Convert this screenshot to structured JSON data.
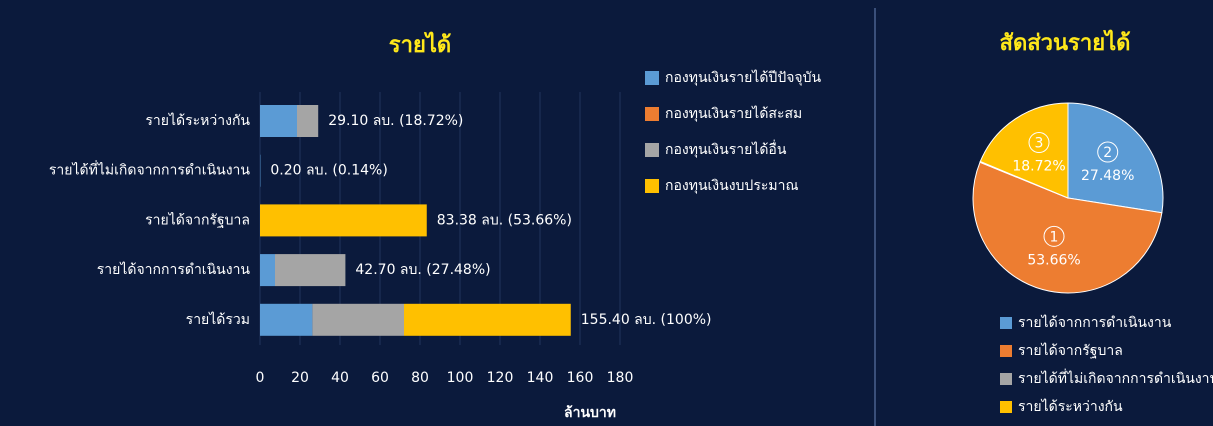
{
  "chart_data": [
    {
      "type": "hbar_stacked",
      "title": "รายได้",
      "categories": [
        "รายได้ระหว่างกัน",
        "รายได้ที่ไม่เกิดจากการดำเนินงาน",
        "รายได้จากรัฐบาล",
        "รายได้จากการดำเนินงาน",
        "รายได้รวม"
      ],
      "series": [
        {
          "name": "กองทุนเงินรายได้ปีปัจจุบัน",
          "color": "#5b9bd5",
          "values": [
            18.5,
            0.2,
            0,
            7.5,
            26.2
          ]
        },
        {
          "name": "กองทุนเงินรายได้สะสม",
          "color": "#ed7d31",
          "values": [
            0,
            0,
            0,
            0,
            0
          ]
        },
        {
          "name": "กองทุนเงินรายได้อื่น",
          "color": "#a5a5a5",
          "values": [
            10.6,
            0,
            0,
            35.2,
            45.8
          ]
        },
        {
          "name": "กองทุนเงินงบประมาณ",
          "color": "#ffc000",
          "values": [
            0,
            0,
            83.38,
            0,
            83.38
          ]
        }
      ],
      "annotations": [
        "29.10 ลบ. (18.72%)",
        "0.20 ลบ. (0.14%)",
        "83.38 ลบ. (53.66%)",
        "42.70 ลบ. (27.48%)",
        "155.40 ลบ. (100%)"
      ],
      "xlabel": "ล้านบาท",
      "xlim": [
        0,
        180
      ],
      "xticks": [
        0,
        20,
        40,
        60,
        80,
        100,
        120,
        140,
        160,
        180
      ],
      "grid": true
    },
    {
      "type": "pie",
      "title": "สัดส่วนรายได้",
      "categories": [
        "รายได้จากการดำเนินงาน",
        "รายได้จากรัฐบาล",
        "รายได้ที่ไม่เกิดจากการดำเนินงาน",
        "รายได้ระหว่างกัน"
      ],
      "values": [
        27.48,
        53.66,
        0.14,
        18.72
      ],
      "value_labels": [
        "27.48%",
        "53.66%",
        null,
        "18.72%"
      ],
      "slice_numbers": [
        "2",
        "1",
        null,
        "3"
      ],
      "colors": [
        "#5b9bd5",
        "#ed7d31",
        "#a5a5a5",
        "#ffc000"
      ]
    }
  ]
}
